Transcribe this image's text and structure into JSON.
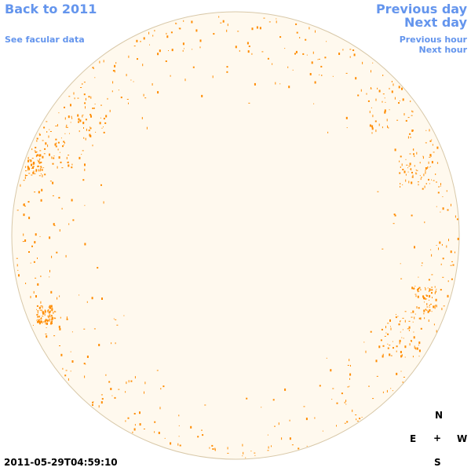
{
  "nav": {
    "back_label": "Back to 2011",
    "facular_label": "See facular data",
    "prev_day_label": "Previous day",
    "next_day_label": "Next day",
    "prev_hour_label": "Previous hour",
    "next_hour_label": "Next hour",
    "link_color": "#6495ed"
  },
  "disk": {
    "fill_color": "#fff9ee",
    "border_color": "#d8c8a8",
    "plage_color": "#ff8c00"
  },
  "compass": {
    "north": "N",
    "east": "E",
    "west": "W",
    "south": "S",
    "center": "+"
  },
  "timestamp": "2011-05-29T04:59:10"
}
